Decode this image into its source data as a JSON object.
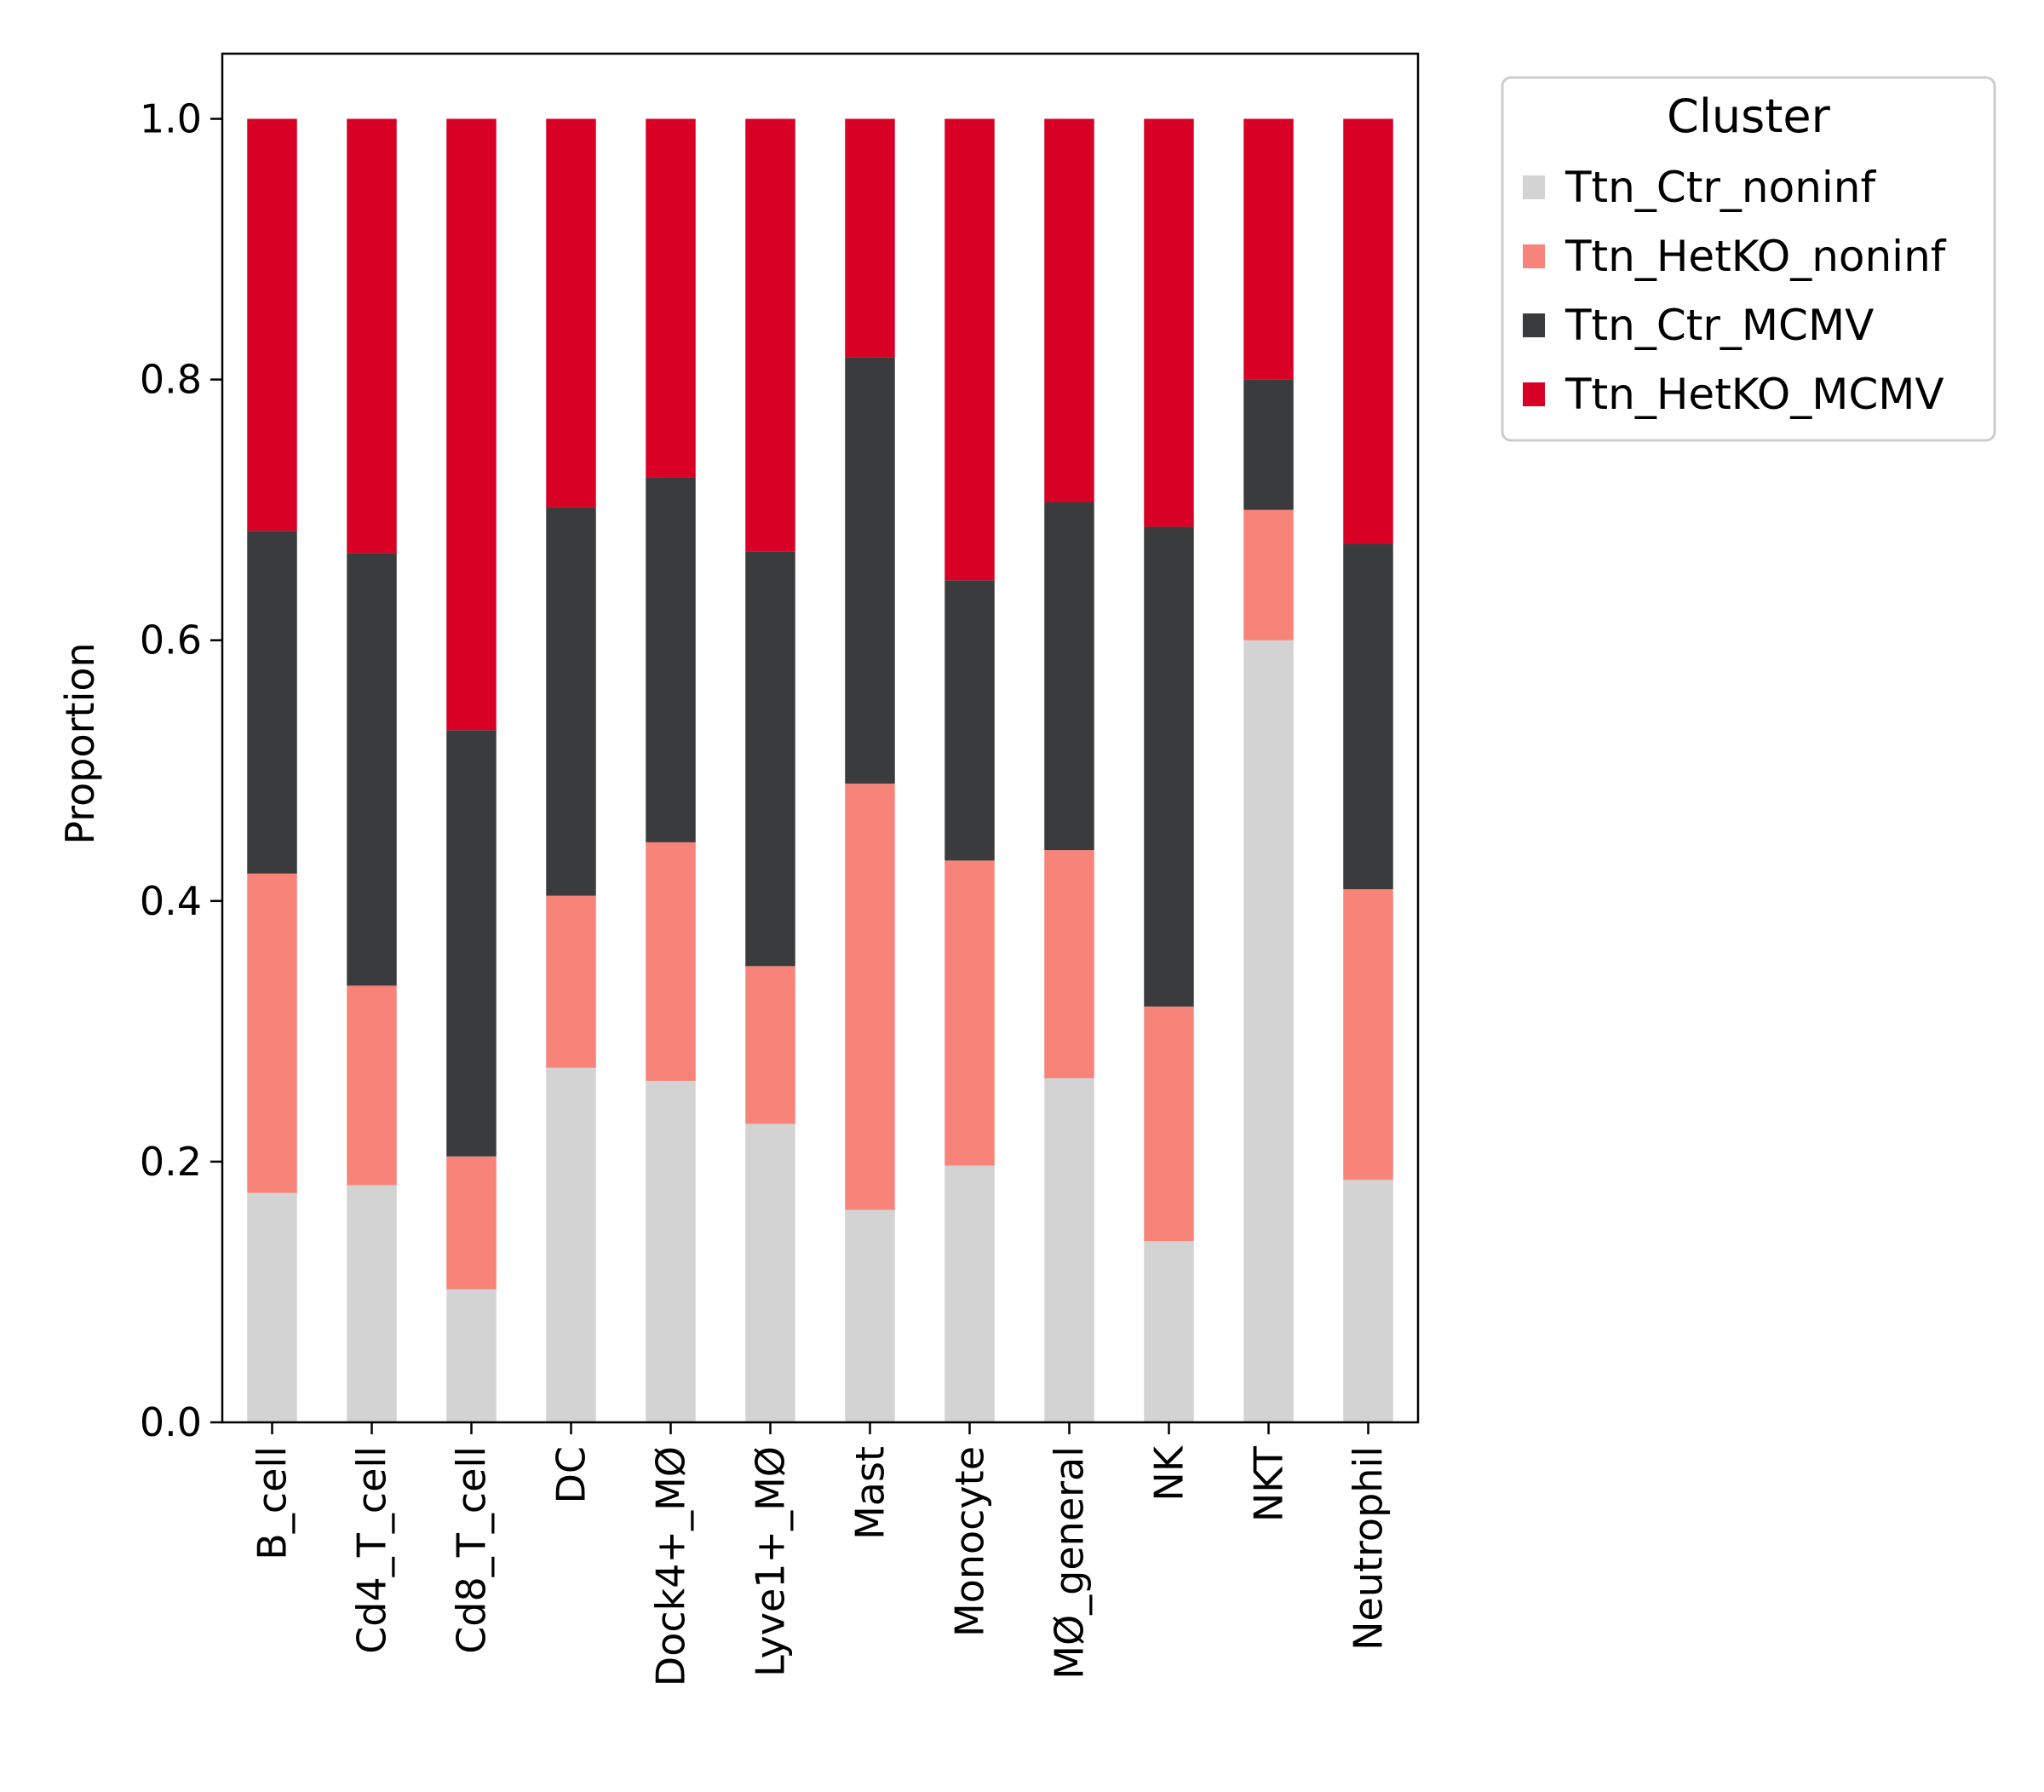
{
  "chart_data": {
    "type": "bar",
    "stacked": true,
    "title": "",
    "xlabel": "",
    "ylabel": "Proportion",
    "ylim": [
      0,
      1.05
    ],
    "yticks": [
      "0.0",
      "0.2",
      "0.4",
      "0.6",
      "0.8",
      "1.0"
    ],
    "grid": false,
    "categories": [
      "B_cell",
      "Cd4_T_cell",
      "Cd8_T_cell",
      "DC",
      "Dock4+_MØ",
      "Lyve1+_MØ",
      "Mast",
      "Monocyte",
      "MØ_general",
      "NK",
      "NKT",
      "Neutrophil"
    ],
    "series": [
      {
        "name": "Ttn_Ctr_noninf",
        "color": "#d3d3d3",
        "values": [
          0.176,
          0.182,
          0.102,
          0.272,
          0.262,
          0.229,
          0.163,
          0.197,
          0.264,
          0.139,
          0.6,
          0.186
        ]
      },
      {
        "name": "Ttn_HetKO_noninf",
        "color": "#f88379",
        "values": [
          0.245,
          0.153,
          0.102,
          0.132,
          0.183,
          0.121,
          0.327,
          0.234,
          0.175,
          0.18,
          0.1,
          0.223
        ]
      },
      {
        "name": "Ttn_Ctr_MCMV",
        "color": "#3a3b3d",
        "values": [
          0.263,
          0.332,
          0.327,
          0.298,
          0.28,
          0.318,
          0.327,
          0.215,
          0.267,
          0.368,
          0.1,
          0.265
        ]
      },
      {
        "name": "Ttn_HetKO_MCMV",
        "color": "#d90026",
        "values": [
          0.316,
          0.333,
          0.469,
          0.298,
          0.275,
          0.332,
          0.183,
          0.354,
          0.294,
          0.313,
          0.2,
          0.326
        ]
      }
    ],
    "legend": {
      "title": "Cluster",
      "placement": "outside-upper-right"
    }
  }
}
